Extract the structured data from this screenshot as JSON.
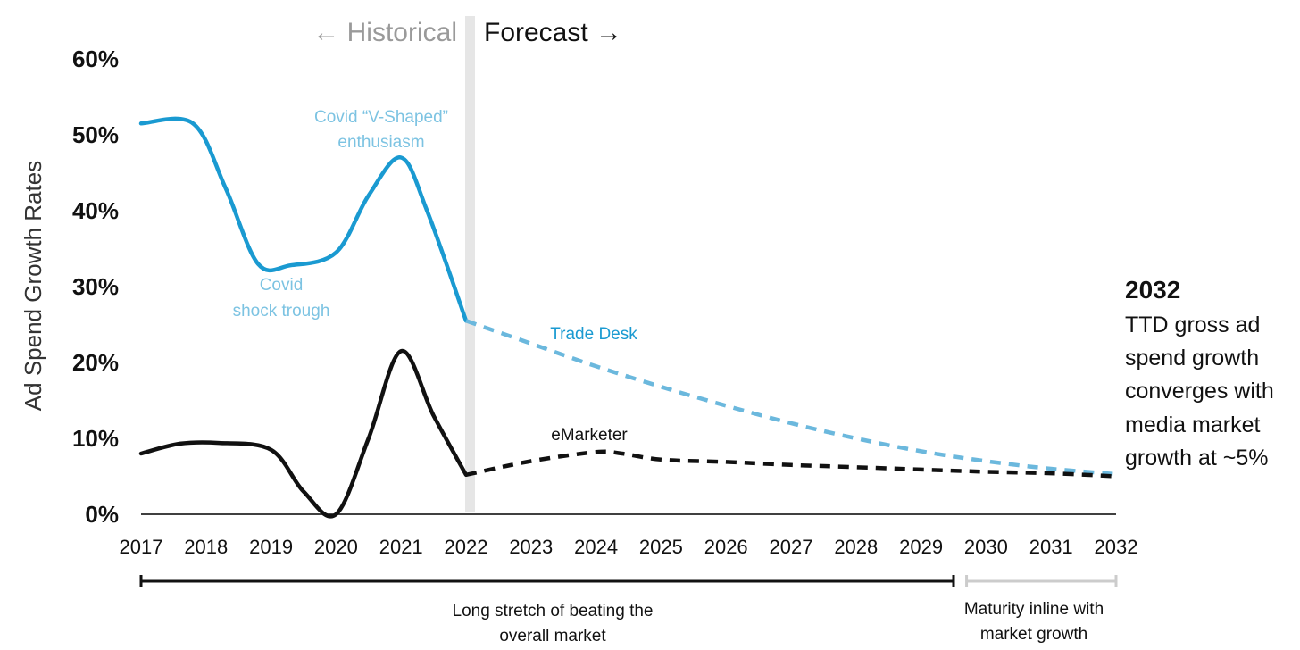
{
  "chart_data": {
    "type": "line",
    "ylabel": "Ad Spend Growth Rates",
    "ylim": [
      0,
      60
    ],
    "yticks": [
      "0%",
      "10%",
      "20%",
      "30%",
      "40%",
      "50%",
      "60%"
    ],
    "x": [
      "2017",
      "2018",
      "2019",
      "2020",
      "2021",
      "2022",
      "2023",
      "2024",
      "2025",
      "2026",
      "2027",
      "2028",
      "2029",
      "2030",
      "2031",
      "2032"
    ],
    "period_labels": {
      "historical": "← Historical",
      "forecast": "Forecast →"
    },
    "series": [
      {
        "name": "Trade Desk",
        "color": "#1a9ad1",
        "forecast_color": "#6bb8dd",
        "historical": [
          [
            2017,
            51.5
          ],
          [
            2017.8,
            51.5
          ],
          [
            2018.3,
            43
          ],
          [
            2018.8,
            33
          ],
          [
            2019.3,
            32.8
          ],
          [
            2020,
            34.5
          ],
          [
            2020.5,
            42
          ],
          [
            2021,
            47
          ],
          [
            2021.4,
            40
          ],
          [
            2022,
            25.5
          ]
        ],
        "forecast": [
          [
            2022,
            25.5
          ],
          [
            2023,
            22.5
          ],
          [
            2024,
            19.5
          ],
          [
            2025,
            16.8
          ],
          [
            2026,
            14.3
          ],
          [
            2027,
            12
          ],
          [
            2028,
            10
          ],
          [
            2029,
            8.3
          ],
          [
            2030,
            7
          ],
          [
            2031,
            6
          ],
          [
            2032,
            5.3
          ]
        ]
      },
      {
        "name": "eMarketer",
        "color": "#111111",
        "forecast_color": "#111111",
        "historical": [
          [
            2017,
            8
          ],
          [
            2017.6,
            9.3
          ],
          [
            2018.2,
            9.4
          ],
          [
            2019,
            8.5
          ],
          [
            2019.5,
            3
          ],
          [
            2020,
            0
          ],
          [
            2020.5,
            10
          ],
          [
            2021,
            21.5
          ],
          [
            2021.5,
            13
          ],
          [
            2022,
            5.2
          ]
        ],
        "forecast": [
          [
            2022,
            5.2
          ],
          [
            2023,
            7
          ],
          [
            2024,
            8.2
          ],
          [
            2024.4,
            8
          ],
          [
            2025,
            7.2
          ],
          [
            2026,
            6.9
          ],
          [
            2027,
            6.5
          ],
          [
            2028,
            6.2
          ],
          [
            2029,
            5.9
          ],
          [
            2030,
            5.6
          ],
          [
            2031,
            5.4
          ],
          [
            2032,
            5
          ]
        ]
      }
    ],
    "annotations": [
      {
        "id": "covid-trough",
        "lines": [
          "Covid",
          "shock trough"
        ],
        "x": 2019.6,
        "y": 30.2
      },
      {
        "id": "covid-v",
        "lines": [
          "Covid “V-Shaped”",
          "enthusiasm"
        ],
        "x": 2021.1,
        "y": 52.5
      }
    ],
    "side_note": {
      "title": "2032",
      "body": [
        "TTD gross ad",
        "spend growth",
        "converges with",
        "media market",
        "growth at ~5%"
      ]
    },
    "brackets": [
      {
        "label": [
          "Long stretch of beating the",
          "overall market"
        ],
        "from": 2017,
        "to": 2029.5,
        "color": "#111111"
      },
      {
        "label": [
          "Maturity inline with",
          "market growth"
        ],
        "from": 2029.7,
        "to": 2032,
        "color": "#cccccc"
      }
    ]
  }
}
